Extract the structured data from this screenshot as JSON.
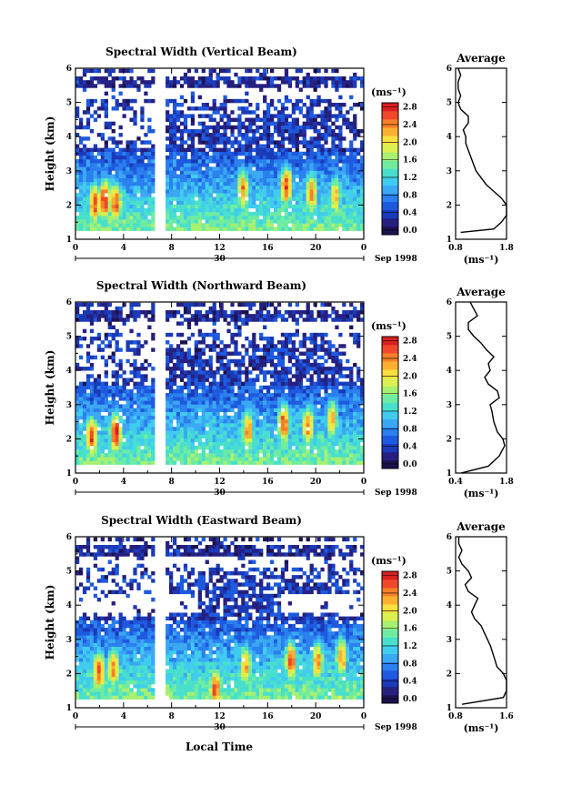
{
  "footer_xlabel": "Local Time",
  "colormap": [
    "#1c1250",
    "#252080",
    "#1a3ab8",
    "#1e5ae0",
    "#2a80ee",
    "#3aa8f2",
    "#40ccee",
    "#48e0cc",
    "#70eca0",
    "#a8f070",
    "#dcf050",
    "#f8e040",
    "#fcb030",
    "#f88028",
    "#f04828",
    "#d82020"
  ],
  "panels": [
    {
      "title": "Spectral Width (Vertical Beam)",
      "ylabel": "Height (km)",
      "yticks": [
        "1",
        "2",
        "3",
        "4",
        "5",
        "6"
      ],
      "xticks": [
        "0",
        "4",
        "8",
        "12",
        "16",
        "20",
        "0"
      ],
      "day_label": "30",
      "month_label": "Sep 1998",
      "cbar_unit": "(ms⁻¹)",
      "cbar_ticks": [
        "0.0",
        "0.4",
        "0.8",
        "1.2",
        "1.6",
        "2.0",
        "2.4",
        "2.8"
      ],
      "avg_title": "Average",
      "avg_xticks": [
        "0.8",
        "1.8"
      ],
      "avg_unit": "(ms⁻¹)",
      "avg_yticks": [
        "1",
        "2",
        "3",
        "4",
        "5",
        "6"
      ]
    },
    {
      "title": "Spectral Width (Northward Beam)",
      "ylabel": "Height (km)",
      "yticks": [
        "1",
        "2",
        "3",
        "4",
        "5",
        "6"
      ],
      "xticks": [
        "0",
        "4",
        "8",
        "12",
        "16",
        "20",
        "0"
      ],
      "day_label": "30",
      "month_label": "Sep 1998",
      "cbar_unit": "(ms⁻¹)",
      "cbar_ticks": [
        "0.0",
        "0.4",
        "0.8",
        "1.2",
        "1.6",
        "2.0",
        "2.4",
        "2.8"
      ],
      "avg_title": "Average",
      "avg_xticks": [
        "0.4",
        "1.8"
      ],
      "avg_unit": "(ms⁻¹)",
      "avg_yticks": [
        "1",
        "2",
        "3",
        "4",
        "5",
        "6"
      ]
    },
    {
      "title": "Spectral Width (Eastward Beam)",
      "ylabel": "Height (km)",
      "yticks": [
        "1",
        "2",
        "3",
        "4",
        "5",
        "6"
      ],
      "xticks": [
        "0",
        "4",
        "8",
        "12",
        "16",
        "20",
        "0"
      ],
      "day_label": "30",
      "month_label": "Sep 1998",
      "cbar_unit": "(ms⁻¹)",
      "cbar_ticks": [
        "0.0",
        "0.4",
        "0.8",
        "1.2",
        "1.6",
        "2.0",
        "2.4",
        "2.8"
      ],
      "avg_title": "Average",
      "avg_xticks": [
        "0.8",
        "1.6"
      ],
      "avg_unit": "(ms⁻¹)",
      "avg_yticks": [
        "1",
        "2",
        "3",
        "4",
        "5",
        "6"
      ]
    }
  ],
  "chart_data": [
    {
      "type": "heatmap",
      "title": "Spectral Width (Vertical Beam)",
      "xlabel": "Local Time",
      "ylabel": "Height (km)",
      "xlim": [
        0,
        24
      ],
      "ylim": [
        1,
        6
      ],
      "colorbar_range": [
        0.0,
        3.0
      ],
      "data_gap_hours": [
        6.6,
        7.3
      ],
      "hotspots": [
        {
          "t": 1.5,
          "h": 2.0,
          "w": 2.6
        },
        {
          "t": 2.3,
          "h": 2.1,
          "w": 2.8
        },
        {
          "t": 3.2,
          "h": 2.0,
          "w": 2.6
        },
        {
          "t": 13.8,
          "h": 2.4,
          "w": 2.4
        },
        {
          "t": 17.4,
          "h": 2.5,
          "w": 2.6
        },
        {
          "t": 19.5,
          "h": 2.3,
          "w": 2.4
        },
        {
          "t": 21.5,
          "h": 2.2,
          "w": 2.2
        }
      ],
      "mean_profile": {
        "type": "line",
        "xlim": [
          0.8,
          1.8
        ],
        "h": [
          1.2,
          1.3,
          1.5,
          1.7,
          1.9,
          2.0,
          2.2,
          2.4,
          2.6,
          2.8,
          3.0,
          3.2,
          3.4,
          3.6,
          3.8,
          4.0,
          4.2,
          4.4,
          4.6,
          4.8,
          5.0,
          5.2,
          5.4,
          5.6,
          5.8,
          6.0
        ],
        "w": [
          0.9,
          1.55,
          1.7,
          1.8,
          1.85,
          1.8,
          1.7,
          1.55,
          1.4,
          1.3,
          1.2,
          1.15,
          1.1,
          1.05,
          1.0,
          1.0,
          0.95,
          1.05,
          1.05,
          0.9,
          0.85,
          0.9,
          0.85,
          0.85,
          0.9,
          0.85
        ]
      }
    },
    {
      "type": "heatmap",
      "title": "Spectral Width (Northward Beam)",
      "xlabel": "Local Time",
      "ylabel": "Height (km)",
      "xlim": [
        0,
        24
      ],
      "ylim": [
        1,
        6
      ],
      "colorbar_range": [
        0.0,
        3.0
      ],
      "data_gap_hours": [
        6.6,
        7.3
      ],
      "hotspots": [
        {
          "t": 1.2,
          "h": 2.0,
          "w": 2.6
        },
        {
          "t": 3.2,
          "h": 2.1,
          "w": 2.8
        },
        {
          "t": 14.2,
          "h": 2.2,
          "w": 2.4
        },
        {
          "t": 17.2,
          "h": 2.4,
          "w": 2.6
        },
        {
          "t": 19.2,
          "h": 2.3,
          "w": 2.4
        },
        {
          "t": 21.2,
          "h": 2.5,
          "w": 2.2
        }
      ],
      "mean_profile": {
        "type": "line",
        "xlim": [
          0.4,
          1.8
        ],
        "h": [
          1.0,
          1.2,
          1.5,
          1.8,
          2.0,
          2.2,
          2.5,
          2.8,
          3.0,
          3.2,
          3.4,
          3.6,
          3.8,
          4.0,
          4.2,
          4.4,
          4.6,
          4.8,
          5.0,
          5.2,
          5.4,
          5.6,
          5.8,
          6.0
        ],
        "w": [
          0.55,
          1.3,
          1.6,
          1.75,
          1.7,
          1.55,
          1.45,
          1.4,
          1.35,
          1.6,
          1.55,
          1.3,
          1.2,
          1.35,
          1.3,
          1.45,
          1.25,
          1.1,
          0.9,
          0.75,
          0.75,
          1.0,
          0.9,
          0.8
        ]
      }
    },
    {
      "type": "heatmap",
      "title": "Spectral Width (Eastward Beam)",
      "xlabel": "Local Time",
      "ylabel": "Height (km)",
      "xlim": [
        0,
        24
      ],
      "ylim": [
        1,
        6
      ],
      "colorbar_range": [
        0.0,
        3.0
      ],
      "data_gap_hours": [
        6.6,
        7.3
      ],
      "hotspots": [
        {
          "t": 1.8,
          "h": 2.0,
          "w": 2.6
        },
        {
          "t": 3.0,
          "h": 2.1,
          "w": 2.4
        },
        {
          "t": 11.5,
          "h": 1.5,
          "w": 2.6
        },
        {
          "t": 14.0,
          "h": 2.2,
          "w": 2.3
        },
        {
          "t": 17.8,
          "h": 2.3,
          "w": 2.6
        },
        {
          "t": 20.0,
          "h": 2.3,
          "w": 2.4
        },
        {
          "t": 22.0,
          "h": 2.4,
          "w": 2.3
        }
      ],
      "mean_profile": {
        "type": "line",
        "xlim": [
          0.8,
          1.6
        ],
        "h": [
          1.1,
          1.3,
          1.5,
          1.8,
          2.0,
          2.2,
          2.5,
          2.8,
          3.0,
          3.2,
          3.4,
          3.6,
          3.8,
          4.0,
          4.2,
          4.4,
          4.6,
          4.8,
          5.0,
          5.2,
          5.4,
          5.6,
          5.8,
          6.0
        ],
        "w": [
          0.9,
          1.55,
          1.6,
          1.6,
          1.55,
          1.45,
          1.4,
          1.35,
          1.3,
          1.25,
          1.2,
          1.1,
          1.05,
          1.1,
          1.15,
          1.0,
          0.95,
          1.05,
          1.0,
          0.9,
          0.85,
          0.9,
          0.85,
          0.85
        ]
      }
    }
  ]
}
